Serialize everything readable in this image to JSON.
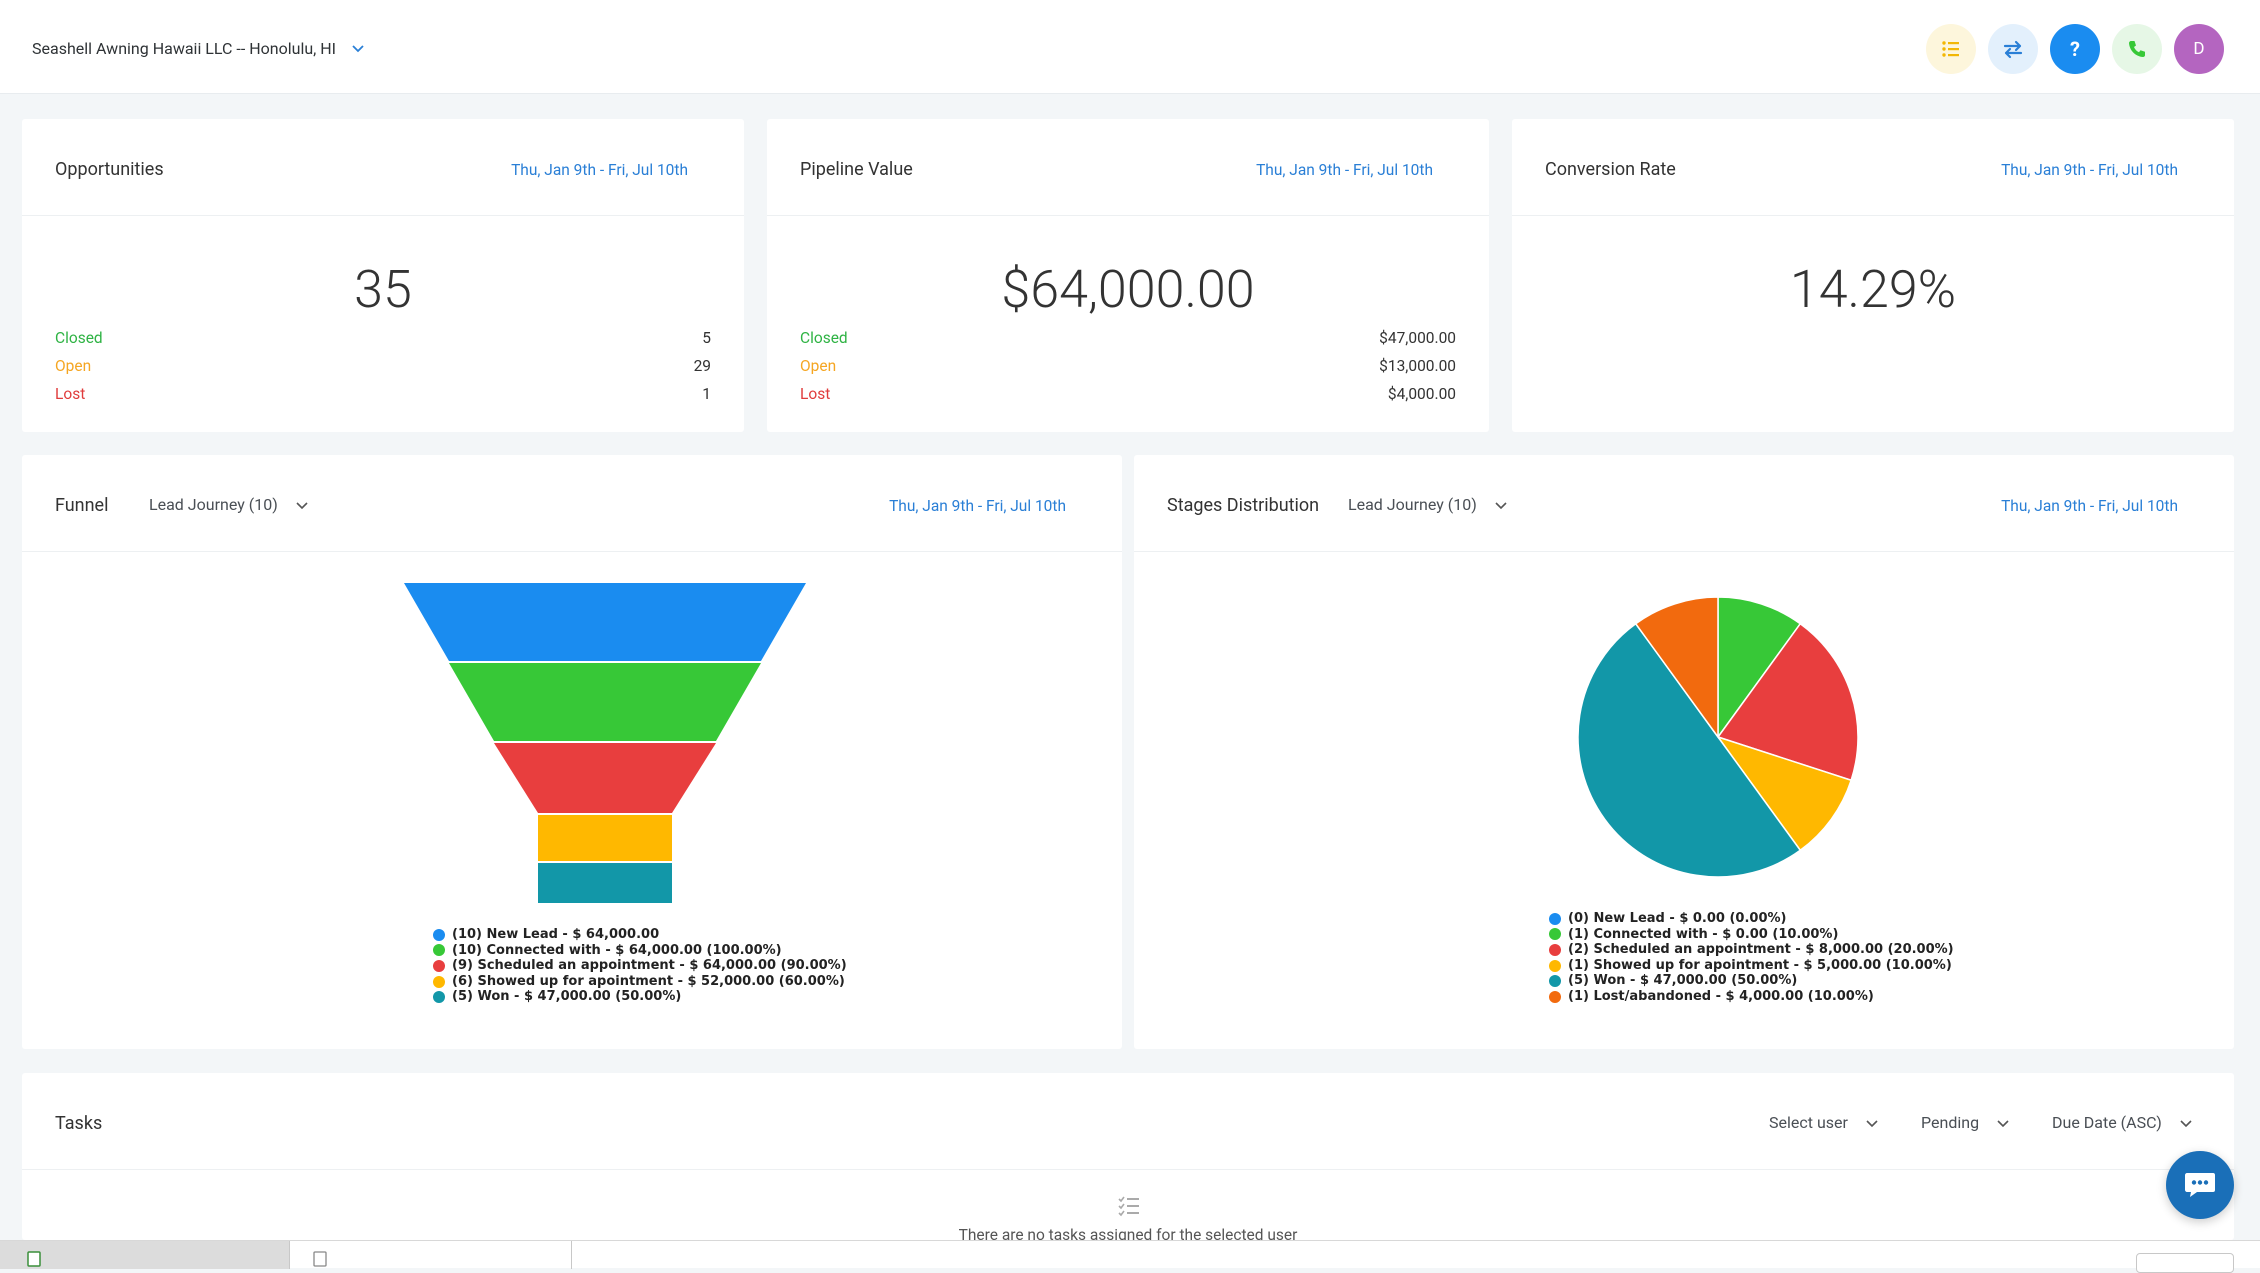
{
  "header": {
    "location": "Seashell Awning Hawaii LLC -- Honolulu, HI",
    "avatar_initial": "D",
    "help_label": "?",
    "icons": [
      "list-icon",
      "switch-icon",
      "help-icon",
      "phone-icon",
      "avatar"
    ]
  },
  "opportunities": {
    "title": "Opportunities",
    "date": "Thu, Jan 9th - Fri, Jul 10th",
    "total": "35",
    "rows": [
      {
        "label": "Closed",
        "value": "5"
      },
      {
        "label": "Open",
        "value": "29"
      },
      {
        "label": "Lost",
        "value": "1"
      }
    ]
  },
  "pipeline": {
    "title": "Pipeline Value",
    "date": "Thu, Jan 9th - Fri, Jul 10th",
    "total": "$64,000.00",
    "rows": [
      {
        "label": "Closed",
        "value": "$47,000.00"
      },
      {
        "label": "Open",
        "value": "$13,000.00"
      },
      {
        "label": "Lost",
        "value": "$4,000.00"
      }
    ]
  },
  "conversion": {
    "title": "Conversion Rate",
    "date": "Thu, Jan 9th - Fri, Jul 10th",
    "value": "14.29%"
  },
  "funnel": {
    "title": "Funnel",
    "pipeline_select": "Lead Journey (10)",
    "date": "Thu, Jan 9th - Fri, Jul 10th"
  },
  "stages": {
    "title": "Stages Distribution",
    "pipeline_select": "Lead Journey (10)",
    "date": "Thu, Jan 9th - Fri, Jul 10th"
  },
  "tasks": {
    "title": "Tasks",
    "user_select": "Select user",
    "status_select": "Pending",
    "sort_select": "Due Date (ASC)",
    "empty_text": "There are no tasks assigned for the selected user"
  },
  "colors": {
    "blue": "#1a8cf0",
    "green": "#37c837",
    "red": "#e83e3e",
    "yellow": "#ffb800",
    "teal": "#1297a8",
    "orange": "#f26a0e",
    "link": "#2a7fd6"
  },
  "chart_data": [
    {
      "type": "funnel",
      "title": "Funnel",
      "categories": [
        "New Lead",
        "Connected with",
        "Scheduled an appointment",
        "Showed up for apointment",
        "Won"
      ],
      "counts": [
        10,
        10,
        9,
        6,
        5
      ],
      "values": [
        64000,
        64000,
        64000,
        52000,
        47000
      ],
      "legend": [
        "(10) New Lead - $ 64,000.00",
        "(10) Connected with - $ 64,000.00 (100.00%)",
        "(9) Scheduled an appointment - $ 64,000.00 (90.00%)",
        "(6) Showed up for apointment - $ 52,000.00 (60.00%)",
        "(5) Won - $ 47,000.00 (50.00%)"
      ],
      "colors": [
        "#1a8cf0",
        "#37c837",
        "#e83e3e",
        "#ffb800",
        "#1297a8"
      ]
    },
    {
      "type": "pie",
      "title": "Stages Distribution",
      "categories": [
        "New Lead",
        "Connected with",
        "Scheduled an appointment",
        "Showed up for apointment",
        "Won",
        "Lost/abandoned"
      ],
      "counts": [
        0,
        1,
        2,
        1,
        5,
        1
      ],
      "values": [
        0,
        0,
        8000,
        5000,
        47000,
        4000
      ],
      "percents": [
        0,
        10,
        20,
        10,
        50,
        10
      ],
      "legend": [
        "(0) New Lead - $ 0.00 (0.00%)",
        "(1) Connected with - $ 0.00 (10.00%)",
        "(2) Scheduled an appointment - $ 8,000.00 (20.00%)",
        "(1) Showed up for apointment - $ 5,000.00 (10.00%)",
        "(5) Won - $ 47,000.00 (50.00%)",
        "(1) Lost/abandoned - $ 4,000.00 (10.00%)"
      ],
      "colors": [
        "#1a8cf0",
        "#37c837",
        "#e83e3e",
        "#ffb800",
        "#1297a8",
        "#f26a0e"
      ]
    }
  ]
}
